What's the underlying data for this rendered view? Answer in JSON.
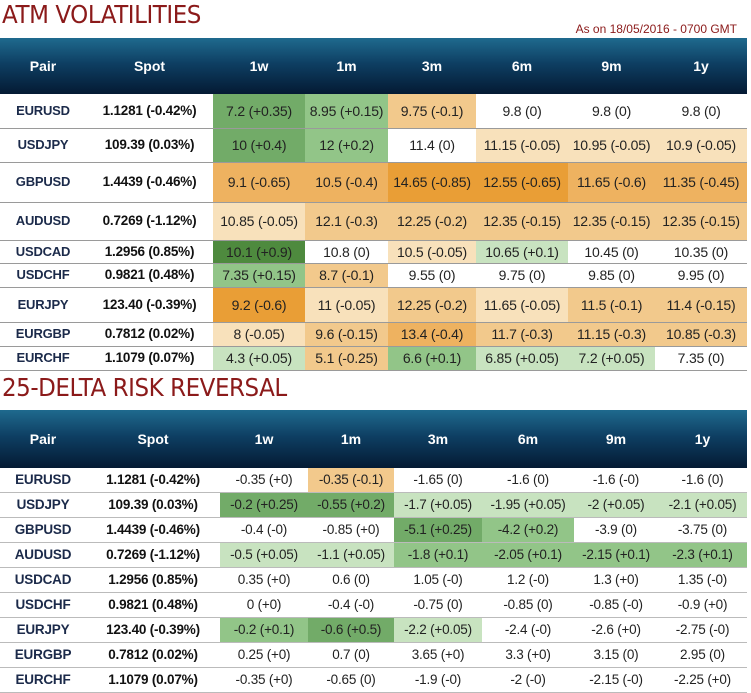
{
  "palette": {
    "w": "#ffffff",
    "g1": "#4e8a3e",
    "g2": "#72ab68",
    "g3": "#92c588",
    "g4": "#c8e3c0",
    "o1": "#e99e36",
    "o2": "#eeb260",
    "o3": "#f2c98c",
    "o4": "#f8e1bb"
  },
  "columns": [
    "Pair",
    "Spot",
    "1w",
    "1m",
    "3m",
    "6m",
    "9m",
    "1y"
  ],
  "atm": {
    "title": "ATM VOLATILITIES",
    "as_of": "As on 18/05/2016 - 0700 GMT",
    "rows": [
      {
        "pair": "EURUSD",
        "spot": "1.1281 (-0.42%)",
        "cells": [
          "7.2 (+0.35)",
          "8.95 (+0.15)",
          "9.75 (-0.1)",
          "9.8 (0)",
          "9.8 (0)",
          "9.8 (0)"
        ],
        "colors": [
          "g2",
          "g3",
          "o3",
          "w",
          "w",
          "w"
        ]
      },
      {
        "pair": "USDJPY",
        "spot": "109.39 (0.03%)",
        "cells": [
          "10 (+0.4)",
          "12 (+0.2)",
          "11.4 (0)",
          "11.15 (-0.05)",
          "10.95 (-0.05)",
          "10.9 (-0.05)"
        ],
        "colors": [
          "g2",
          "g3",
          "w",
          "o4",
          "o4",
          "o4"
        ]
      },
      {
        "pair": "GBPUSD",
        "spot": "1.4439 (-0.46%)",
        "cells": [
          "9.1 (-0.65)",
          "10.5 (-0.4)",
          "14.65 (-0.85)",
          "12.55 (-0.65)",
          "11.65 (-0.6)",
          "11.35 (-0.45)"
        ],
        "colors": [
          "o2",
          "o2",
          "o1",
          "o1",
          "o2",
          "o2"
        ]
      },
      {
        "pair": "AUDUSD",
        "spot": "0.7269 (-1.12%)",
        "cells": [
          "10.85 (-0.05)",
          "12.1 (-0.3)",
          "12.25 (-0.2)",
          "12.35 (-0.15)",
          "12.35 (-0.15)",
          "12.35 (-0.15)"
        ],
        "colors": [
          "o4",
          "o3",
          "o3",
          "o3",
          "o3",
          "o3"
        ]
      },
      {
        "pair": "USDCAD",
        "spot": "1.2956 (0.85%)",
        "cells": [
          "10.1 (+0.9)",
          "10.8 (0)",
          "10.5 (-0.05)",
          "10.65 (+0.1)",
          "10.45 (0)",
          "10.35 (0)"
        ],
        "colors": [
          "g1",
          "w",
          "o4",
          "g4",
          "w",
          "w"
        ]
      },
      {
        "pair": "USDCHF",
        "spot": "0.9821 (0.48%)",
        "cells": [
          "7.35 (+0.15)",
          "8.7 (-0.1)",
          "9.55 (0)",
          "9.75 (0)",
          "9.85 (0)",
          "9.95 (0)"
        ],
        "colors": [
          "g3",
          "o3",
          "w",
          "w",
          "w",
          "w"
        ]
      },
      {
        "pair": "EURJPY",
        "spot": "123.40 (-0.39%)",
        "cells": [
          "9.2 (-0.6)",
          "11 (-0.05)",
          "12.25 (-0.2)",
          "11.65 (-0.05)",
          "11.5 (-0.1)",
          "11.4 (-0.15)"
        ],
        "colors": [
          "o1",
          "o4",
          "o3",
          "o4",
          "o3",
          "o3"
        ]
      },
      {
        "pair": "EURGBP",
        "spot": "0.7812 (0.02%)",
        "cells": [
          "8 (-0.05)",
          "9.6 (-0.15)",
          "13.4 (-0.4)",
          "11.7 (-0.3)",
          "11.15 (-0.3)",
          "10.85 (-0.3)"
        ],
        "colors": [
          "o4",
          "o3",
          "o2",
          "o3",
          "o3",
          "o3"
        ]
      },
      {
        "pair": "EURCHF",
        "spot": "1.1079 (0.07%)",
        "cells": [
          "4.3 (+0.05)",
          "5.1 (-0.25)",
          "6.6 (+0.1)",
          "6.85 (+0.05)",
          "7.2 (+0.05)",
          "7.35 (0)"
        ],
        "colors": [
          "g4",
          "o3",
          "g3",
          "g4",
          "g4",
          "w"
        ]
      }
    ]
  },
  "rr": {
    "title": "25-DELTA RISK REVERSAL",
    "rows": [
      {
        "pair": "EURUSD",
        "spot": "1.1281 (-0.42%)",
        "cells": [
          "-0.35 (+0)",
          "-0.35 (-0.1)",
          "-1.65 (0)",
          "-1.6 (0)",
          "-1.6 (-0)",
          "-1.6 (0)"
        ],
        "colors": [
          "w",
          "o3",
          "w",
          "w",
          "w",
          "w"
        ]
      },
      {
        "pair": "USDJPY",
        "spot": "109.39 (0.03%)",
        "cells": [
          "-0.2 (+0.25)",
          "-0.55 (+0.2)",
          "-1.7 (+0.05)",
          "-1.95 (+0.05)",
          "-2 (+0.05)",
          "-2.1 (+0.05)"
        ],
        "colors": [
          "g2",
          "g2",
          "g4",
          "g4",
          "g4",
          "g4"
        ]
      },
      {
        "pair": "GBPUSD",
        "spot": "1.4439 (-0.46%)",
        "cells": [
          "-0.4 (-0)",
          "-0.85 (+0)",
          "-5.1 (+0.25)",
          "-4.2 (+0.2)",
          "-3.9 (0)",
          "-3.75 (0)"
        ],
        "colors": [
          "w",
          "w",
          "g2",
          "g3",
          "w",
          "w"
        ]
      },
      {
        "pair": "AUDUSD",
        "spot": "0.7269 (-1.12%)",
        "cells": [
          "-0.5 (+0.05)",
          "-1.1 (+0.05)",
          "-1.8 (+0.1)",
          "-2.05 (+0.1)",
          "-2.15 (+0.1)",
          "-2.3 (+0.1)"
        ],
        "colors": [
          "g4",
          "g4",
          "g3",
          "g3",
          "g3",
          "g3"
        ]
      },
      {
        "pair": "USDCAD",
        "spot": "1.2956 (0.85%)",
        "cells": [
          "0.35 (+0)",
          "0.6 (0)",
          "1.05 (-0)",
          "1.2 (-0)",
          "1.3 (+0)",
          "1.35 (-0)"
        ],
        "colors": [
          "w",
          "w",
          "w",
          "w",
          "w",
          "w"
        ]
      },
      {
        "pair": "USDCHF",
        "spot": "0.9821 (0.48%)",
        "cells": [
          "0 (+0)",
          "-0.4 (-0)",
          "-0.75 (0)",
          "-0.85 (0)",
          "-0.85 (-0)",
          "-0.9 (+0)"
        ],
        "colors": [
          "w",
          "w",
          "w",
          "w",
          "w",
          "w"
        ]
      },
      {
        "pair": "EURJPY",
        "spot": "123.40 (-0.39%)",
        "cells": [
          "-0.2 (+0.1)",
          "-0.6 (+0.5)",
          "-2.2 (+0.05)",
          "-2.4 (-0)",
          "-2.6 (+0)",
          "-2.75 (-0)"
        ],
        "colors": [
          "g3",
          "g2",
          "g4",
          "w",
          "w",
          "w"
        ]
      },
      {
        "pair": "EURGBP",
        "spot": "0.7812 (0.02%)",
        "cells": [
          "0.25 (+0)",
          "0.7 (0)",
          "3.65 (+0)",
          "3.3 (+0)",
          "3.15 (0)",
          "2.95 (0)"
        ],
        "colors": [
          "w",
          "w",
          "w",
          "w",
          "w",
          "w"
        ]
      },
      {
        "pair": "EURCHF",
        "spot": "1.1079 (0.07%)",
        "cells": [
          "-0.35 (+0)",
          "-0.65 (0)",
          "-1.9 (-0)",
          "-2 (-0)",
          "-2.15 (-0)",
          "-2.25 (+0)"
        ],
        "colors": [
          "w",
          "w",
          "w",
          "w",
          "w",
          "w"
        ]
      }
    ]
  }
}
